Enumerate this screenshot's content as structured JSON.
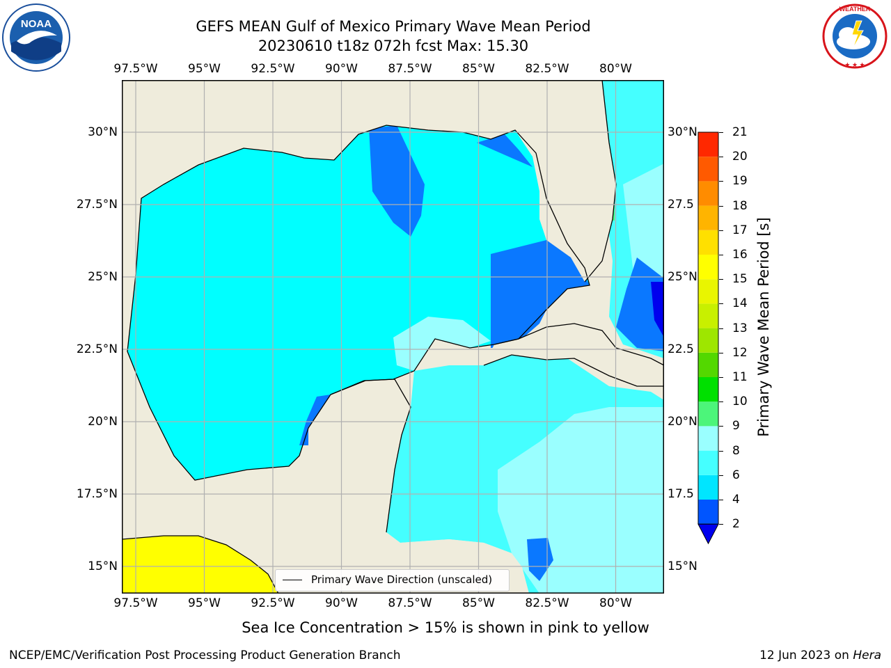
{
  "header": {
    "title_line1": "GEFS MEAN Gulf of Mexico Primary Wave Mean Period",
    "title_line2": "20230610 t18z 072h fcst   Max: 15.30"
  },
  "logos": {
    "left": {
      "name": "noaa-logo",
      "text": "NOAA",
      "ring_text": "NATIONAL OCEANIC AND ATMOSPHERIC ADMINISTRATION · U.S. DEPARTMENT OF COMMERCE"
    },
    "right": {
      "name": "nws-logo",
      "ring_text": "NATIONAL WEATHER SERVICE"
    }
  },
  "map": {
    "lon_ticks": [
      "97.5°W",
      "95°W",
      "92.5°W",
      "90°W",
      "87.5°W",
      "85°W",
      "82.5°W",
      "80°W"
    ],
    "lat_ticks_left": [
      "30°N",
      "27.5°N",
      "25°N",
      "22.5°N",
      "20°N",
      "17.5°N",
      "15°N"
    ],
    "lat_ticks_right": [
      "30°N",
      "27.5",
      "25°N",
      "22.5",
      "20°N",
      "17.5",
      "15°N"
    ],
    "land_color": "#efecdc",
    "grid_color": "#b0b0b0",
    "arrow_color": "#ff0000",
    "legend_label": "Primary Wave Direction (unscaled)"
  },
  "colorbar": {
    "label": "Primary Wave Mean Period [s]",
    "ticks": [
      "2",
      "4",
      "6",
      "8",
      "9",
      "10",
      "11",
      "12",
      "13",
      "14",
      "15",
      "16",
      "17",
      "18",
      "19",
      "20",
      "21"
    ],
    "colors": [
      "#0055ff",
      "#00e5ff",
      "#45ffff",
      "#9affff",
      "#4cf57a",
      "#00e000",
      "#53d800",
      "#9ee600",
      "#c8f000",
      "#e9f500",
      "#ffff00",
      "#ffe000",
      "#ffb400",
      "#ff8c00",
      "#ff5a00",
      "#ff2800"
    ],
    "under_color": "#0000ee"
  },
  "footer": {
    "caption": "Sea Ice Concentration > 15% is shown in pink to yellow",
    "left": "NCEP/EMC/Verification Post Processing Product Generation Branch",
    "right_date": "12 Jun 2023 on ",
    "right_host": "Hera"
  }
}
